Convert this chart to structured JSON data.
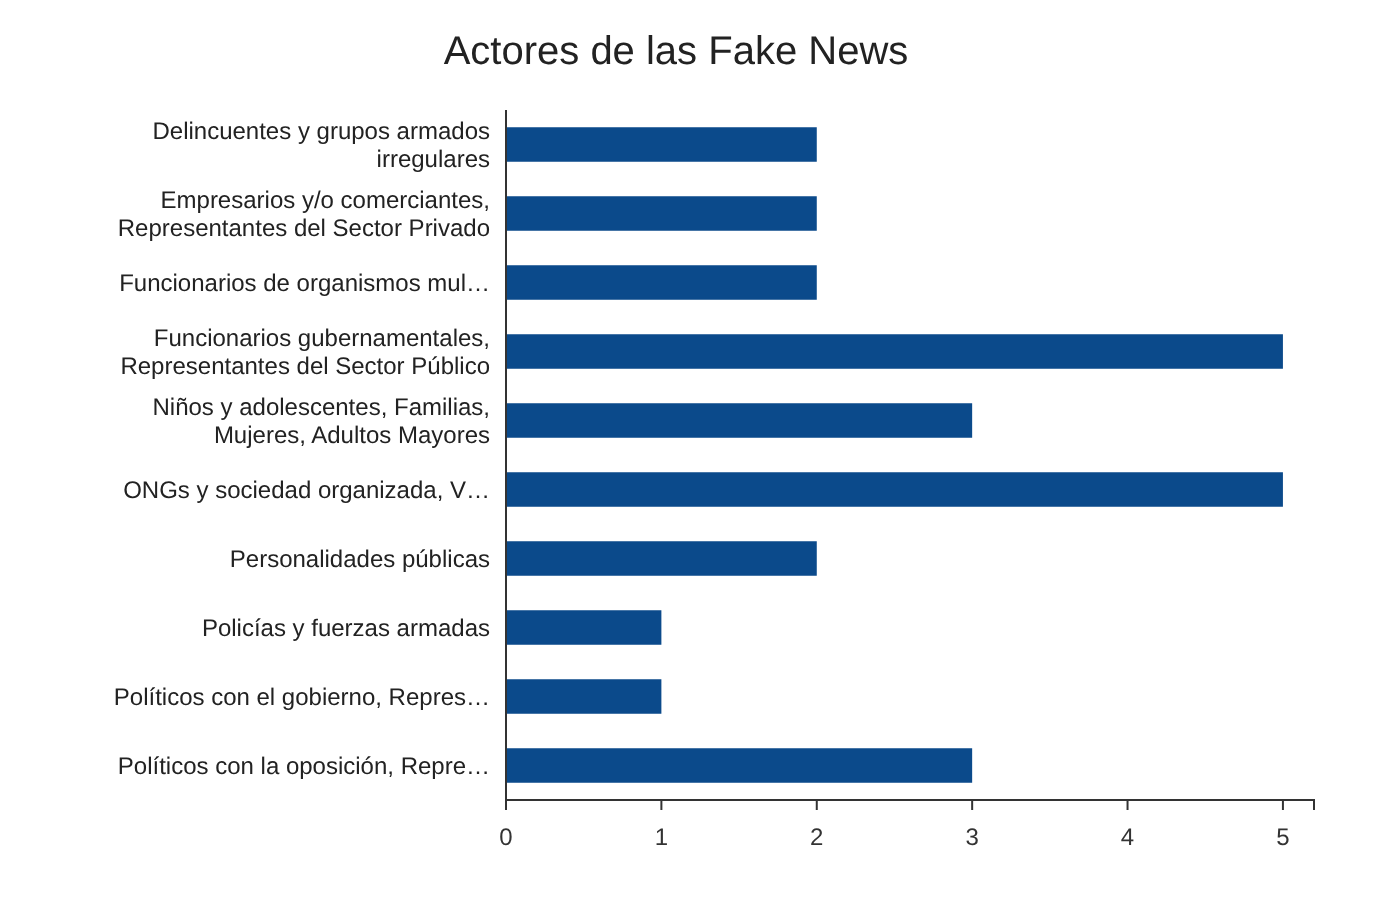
{
  "chart_data": {
    "type": "bar",
    "orientation": "horizontal",
    "title": "Actores de las Fake News",
    "categories": [
      "Delincuentes y grupos armados irregulares",
      "Empresarios y/o comerciantes, Representantes del Sector Privado",
      "Funcionarios de organismos mul…",
      "Funcionarios gubernamentales, Representantes del Sector Público",
      "Niños y adolescentes, Familias, Mujeres, Adultos Mayores",
      "ONGs y sociedad organizada, V…",
      "Personalidades públicas",
      "Policías y fuerzas armadas",
      "Políticos con el gobierno, Repres…",
      "Políticos con la oposición, Repre…"
    ],
    "values": [
      2,
      2,
      2,
      5,
      3,
      5,
      2,
      1,
      1,
      3
    ],
    "color": "#0b4a8b",
    "xlim": [
      0,
      5.2
    ],
    "xticks": [
      0,
      1,
      2,
      3,
      4,
      5
    ],
    "grid": false
  }
}
